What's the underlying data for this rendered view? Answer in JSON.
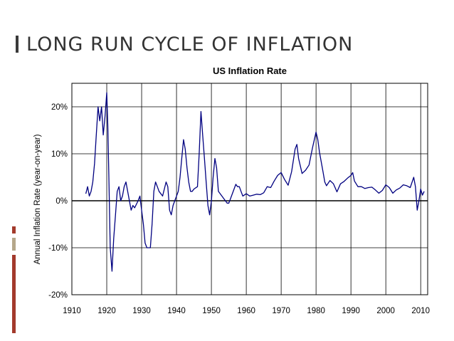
{
  "slide": {
    "title": "LONG RUN CYCLE OF INFLATION"
  },
  "colors": {
    "line": "#000080",
    "accent_red": "#a33a2c",
    "accent_tan": "#b5a78a",
    "grid": "#000000"
  },
  "chart_data": {
    "type": "line",
    "title": "US Inflation Rate",
    "xlabel": "",
    "ylabel": "Annual Inflation Rate (year-on-year)",
    "xlim": [
      1910,
      2012
    ],
    "ylim": [
      -20,
      25
    ],
    "x_ticks": [
      1910,
      1920,
      1930,
      1940,
      1950,
      1960,
      1970,
      1980,
      1990,
      2000,
      2010
    ],
    "x_tick_labels": [
      "1910",
      "1920",
      "1930",
      "1940",
      "1950",
      "1960",
      "1970",
      "1980",
      "1990",
      "2000",
      "2010"
    ],
    "y_ticks": [
      -20,
      -10,
      0,
      10,
      20
    ],
    "y_tick_labels": [
      "-20%",
      "-10%",
      "0%",
      "10%",
      "20%"
    ],
    "grid": true,
    "legend": "none",
    "series": [
      {
        "name": "",
        "points": [
          [
            1914,
            1.5
          ],
          [
            1914.5,
            3
          ],
          [
            1915,
            1
          ],
          [
            1915.5,
            2
          ],
          [
            1916,
            4
          ],
          [
            1916.5,
            8
          ],
          [
            1917,
            14
          ],
          [
            1917.5,
            20
          ],
          [
            1918,
            17
          ],
          [
            1918.5,
            20
          ],
          [
            1919,
            14
          ],
          [
            1919.5,
            18
          ],
          [
            1920,
            23
          ],
          [
            1920.3,
            16
          ],
          [
            1920.6,
            5
          ],
          [
            1921,
            -10
          ],
          [
            1921.5,
            -15
          ],
          [
            1922,
            -8
          ],
          [
            1922.5,
            -3
          ],
          [
            1923,
            2
          ],
          [
            1923.5,
            3
          ],
          [
            1924,
            0
          ],
          [
            1924.5,
            1
          ],
          [
            1925,
            3
          ],
          [
            1925.5,
            4
          ],
          [
            1926,
            2
          ],
          [
            1927,
            -2
          ],
          [
            1927.5,
            -1
          ],
          [
            1928,
            -1.5
          ],
          [
            1929,
            0
          ],
          [
            1929.5,
            1
          ],
          [
            1930,
            -2
          ],
          [
            1930.5,
            -5
          ],
          [
            1931,
            -9
          ],
          [
            1931.5,
            -10
          ],
          [
            1932,
            -10
          ],
          [
            1932.5,
            -10
          ],
          [
            1933,
            -5
          ],
          [
            1933.5,
            2
          ],
          [
            1934,
            4
          ],
          [
            1934.5,
            3
          ],
          [
            1935,
            2
          ],
          [
            1936,
            1
          ],
          [
            1937,
            4
          ],
          [
            1937.5,
            3
          ],
          [
            1938,
            -2
          ],
          [
            1938.5,
            -3
          ],
          [
            1939,
            -1
          ],
          [
            1939.5,
            0
          ],
          [
            1940,
            1
          ],
          [
            1940.5,
            2
          ],
          [
            1941,
            5
          ],
          [
            1941.5,
            9
          ],
          [
            1942,
            13
          ],
          [
            1942.5,
            11
          ],
          [
            1943,
            7
          ],
          [
            1943.5,
            4
          ],
          [
            1944,
            2
          ],
          [
            1944.5,
            2
          ],
          [
            1945,
            2.5
          ],
          [
            1946,
            3
          ],
          [
            1946.5,
            10
          ],
          [
            1947,
            19
          ],
          [
            1947.5,
            14
          ],
          [
            1948,
            9
          ],
          [
            1948.5,
            4
          ],
          [
            1949,
            -1
          ],
          [
            1949.5,
            -3
          ],
          [
            1950,
            0
          ],
          [
            1950.5,
            5
          ],
          [
            1951,
            9
          ],
          [
            1951.5,
            7
          ],
          [
            1952,
            2
          ],
          [
            1953,
            1
          ],
          [
            1954,
            0
          ],
          [
            1954.5,
            -0.5
          ],
          [
            1955,
            -0.5
          ],
          [
            1956,
            1.5
          ],
          [
            1957,
            3.5
          ],
          [
            1957.5,
            3
          ],
          [
            1958,
            3
          ],
          [
            1958.5,
            2
          ],
          [
            1959,
            1
          ],
          [
            1960,
            1.5
          ],
          [
            1961,
            1
          ],
          [
            1962,
            1.2
          ],
          [
            1963,
            1.4
          ],
          [
            1964,
            1.3
          ],
          [
            1965,
            1.7
          ],
          [
            1966,
            3
          ],
          [
            1967,
            2.8
          ],
          [
            1968,
            4.2
          ],
          [
            1969,
            5.4
          ],
          [
            1970,
            6
          ],
          [
            1971,
            4.5
          ],
          [
            1972,
            3.3
          ],
          [
            1973,
            6.2
          ],
          [
            1974,
            11
          ],
          [
            1974.5,
            12
          ],
          [
            1975,
            9
          ],
          [
            1976,
            5.8
          ],
          [
            1977,
            6.5
          ],
          [
            1978,
            7.6
          ],
          [
            1979,
            11.3
          ],
          [
            1980,
            14.6
          ],
          [
            1980.5,
            13
          ],
          [
            1981,
            10.3
          ],
          [
            1982,
            6.2
          ],
          [
            1982.5,
            4
          ],
          [
            1983,
            3.2
          ],
          [
            1984,
            4.3
          ],
          [
            1985,
            3.6
          ],
          [
            1986,
            1.9
          ],
          [
            1987,
            3.6
          ],
          [
            1988,
            4.1
          ],
          [
            1989,
            4.8
          ],
          [
            1990,
            5.4
          ],
          [
            1990.5,
            6
          ],
          [
            1991,
            4.2
          ],
          [
            1992,
            3
          ],
          [
            1993,
            3
          ],
          [
            1994,
            2.6
          ],
          [
            1995,
            2.8
          ],
          [
            1996,
            2.9
          ],
          [
            1997,
            2.3
          ],
          [
            1998,
            1.6
          ],
          [
            1999,
            2.2
          ],
          [
            2000,
            3.4
          ],
          [
            2001,
            2.8
          ],
          [
            2002,
            1.6
          ],
          [
            2003,
            2.3
          ],
          [
            2004,
            2.7
          ],
          [
            2005,
            3.4
          ],
          [
            2006,
            3.2
          ],
          [
            2007,
            2.8
          ],
          [
            2008,
            5
          ],
          [
            2008.5,
            3
          ],
          [
            2009,
            -2
          ],
          [
            2009.5,
            0
          ],
          [
            2010,
            2.5
          ],
          [
            2010.5,
            1.2
          ],
          [
            2011,
            2
          ]
        ]
      }
    ]
  }
}
